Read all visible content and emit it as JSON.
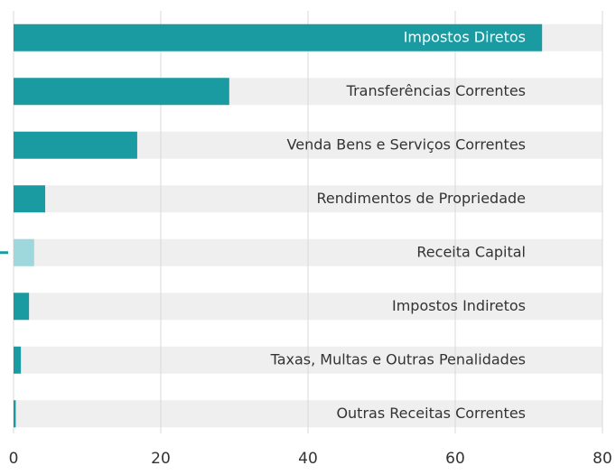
{
  "chart_data": {
    "type": "bar",
    "orientation": "horizontal",
    "categories": [
      "Impostos Diretos",
      "Transferências Correntes",
      "Venda Bens e Serviços Correntes",
      "Rendimentos de Propriedade",
      "Receita Capital",
      "Impostos Indiretos",
      "Taxas, Multas e Outras Penalidades",
      "Outras Receitas Correntes"
    ],
    "values": [
      71.8,
      29.3,
      16.8,
      4.3,
      2.8,
      2.1,
      1.0,
      0.3
    ],
    "colors": [
      "#1a9ba1",
      "#1a9ba1",
      "#1a9ba1",
      "#1a9ba1",
      "#9ed8dc",
      "#1a9ba1",
      "#1a9ba1",
      "#1a9ba1"
    ],
    "xlim": [
      0,
      80
    ],
    "xticks": [
      0,
      20,
      40,
      60,
      80
    ],
    "grid": true
  }
}
